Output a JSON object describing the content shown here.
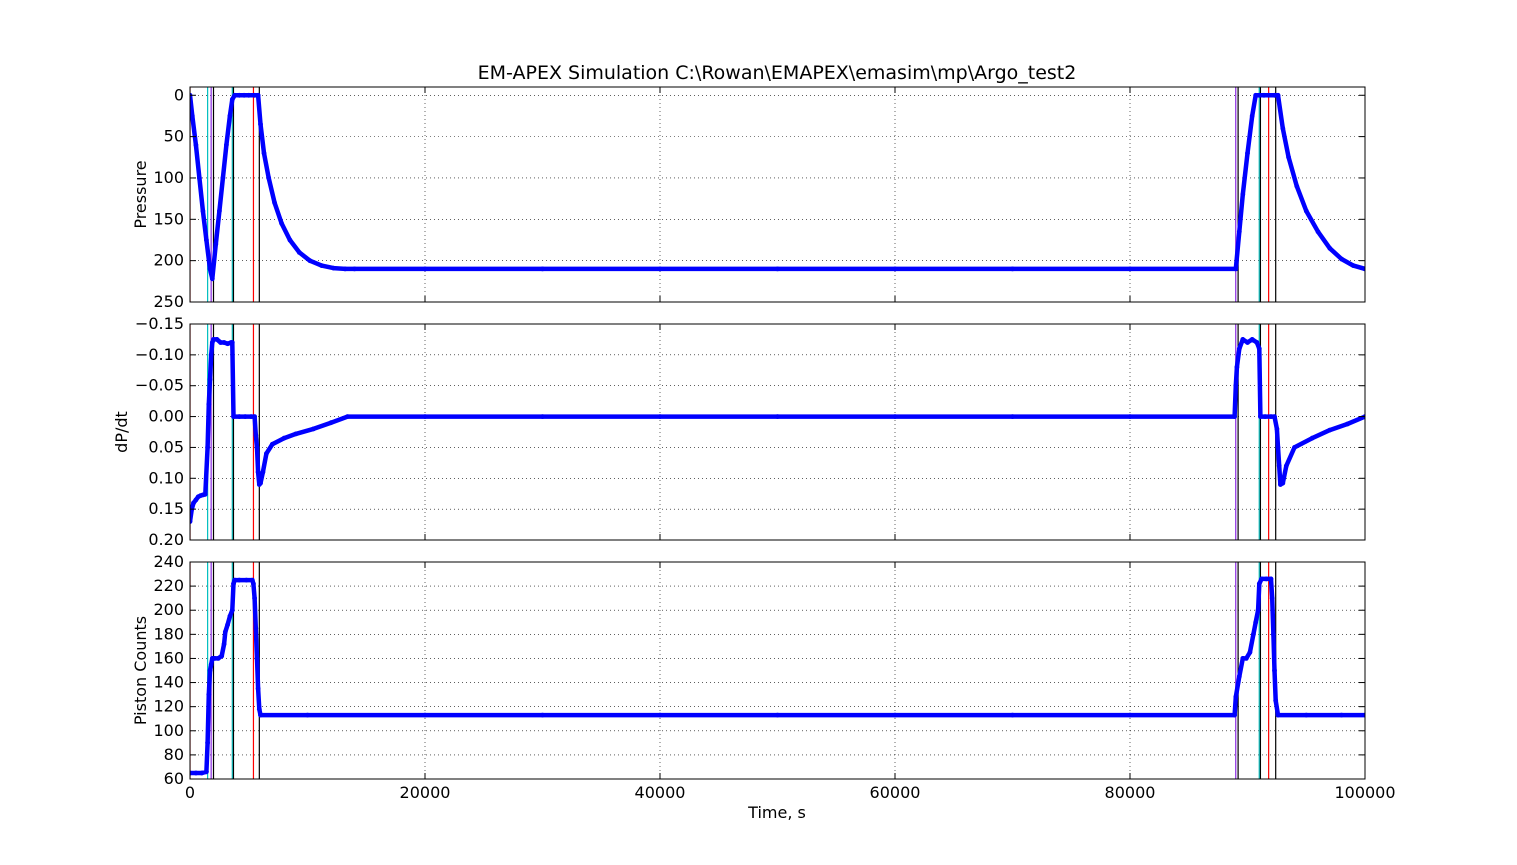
{
  "figure": {
    "title": "EM-APEX Simulation C:\\Rowan\\EMAPEX\\emasim\\mp\\Argo_test2",
    "xlabel": "Time, s"
  },
  "colors": {
    "series": "#0000ff",
    "event_red": "#ff0000",
    "event_cyan": "#00bfbf",
    "event_black": "#000000",
    "event_purple": "#8a2be2",
    "grid": "#000000"
  },
  "chart_data": [
    {
      "type": "scatter",
      "name": "pressure-panel",
      "ylabel": "Pressure",
      "xlim": [
        0,
        100000
      ],
      "ylim": [
        250,
        -10
      ],
      "y_inverted": true,
      "grid": true,
      "xticks": [
        0,
        20000,
        40000,
        60000,
        80000,
        100000
      ],
      "yticks": [
        0,
        50,
        100,
        150,
        200,
        250
      ],
      "ytick_labels": [
        "0",
        "50",
        "100",
        "150",
        "200",
        "250"
      ],
      "series": [
        {
          "x": [
            0,
            200,
            500,
            800,
            1100,
            1400,
            1700,
            1900,
            2200,
            2500,
            2800,
            3100,
            3400,
            3600,
            3800,
            4200,
            4600,
            5000,
            5500,
            5800,
            6000,
            6300,
            6700,
            7200,
            7800,
            8500,
            9300,
            10200,
            11200,
            12200,
            13200,
            14000,
            20000,
            30000,
            40000,
            50000,
            60000,
            70000,
            80000,
            89000,
            89300,
            89600,
            90000,
            90400,
            90700,
            91000,
            91400,
            91800,
            92300,
            92600,
            93000,
            93500,
            94200,
            95000,
            96000,
            97000,
            98000,
            99000,
            100000
          ],
          "y": [
            0,
            25,
            60,
            100,
            140,
            175,
            210,
            222,
            180,
            140,
            100,
            60,
            25,
            5,
            0,
            0,
            0,
            0,
            0,
            0,
            35,
            70,
            100,
            130,
            155,
            175,
            190,
            200,
            206,
            209,
            210,
            210,
            210,
            210,
            210,
            210,
            210,
            210,
            210,
            210,
            165,
            120,
            70,
            25,
            0,
            0,
            0,
            0,
            0,
            0,
            40,
            75,
            110,
            140,
            165,
            185,
            198,
            206,
            210
          ]
        }
      ],
      "events": [
        {
          "x": 0,
          "color": "red"
        },
        {
          "x": 1500,
          "color": "cyan"
        },
        {
          "x": 1800,
          "color": "purple"
        },
        {
          "x": 2000,
          "color": "black"
        },
        {
          "x": 3600,
          "color": "cyan"
        },
        {
          "x": 3700,
          "color": "black"
        },
        {
          "x": 5400,
          "color": "red"
        },
        {
          "x": 5900,
          "color": "black"
        },
        {
          "x": 89000,
          "color": "purple"
        },
        {
          "x": 89200,
          "color": "black"
        },
        {
          "x": 91000,
          "color": "cyan"
        },
        {
          "x": 91100,
          "color": "black"
        },
        {
          "x": 91800,
          "color": "red"
        },
        {
          "x": 92400,
          "color": "black"
        }
      ]
    },
    {
      "type": "scatter",
      "name": "dpdt-panel",
      "ylabel": "dP/dt",
      "xlim": [
        0,
        100000
      ],
      "ylim": [
        0.2,
        -0.15
      ],
      "y_inverted": true,
      "grid": true,
      "xticks": [
        0,
        20000,
        40000,
        60000,
        80000,
        100000
      ],
      "yticks": [
        -0.15,
        -0.1,
        -0.05,
        0,
        0.05,
        0.1,
        0.15,
        0.2
      ],
      "ytick_labels": [
        "−0.15",
        "−0.10",
        "−0.05",
        "0.00",
        "0.05",
        "0.10",
        "0.15",
        "0.20"
      ],
      "series": [
        {
          "x": [
            0,
            150,
            300,
            500,
            700,
            900,
            1100,
            1300,
            1500,
            1600,
            1700,
            1800,
            1900,
            2000,
            2300,
            2600,
            2900,
            3200,
            3500,
            3600,
            3700,
            4200,
            4700,
            5200,
            5500,
            5600,
            5700,
            5800,
            5900,
            6000,
            6200,
            6500,
            7000,
            8000,
            9000,
            10500,
            12000,
            13400,
            20000,
            30000,
            40000,
            50000,
            60000,
            70000,
            80000,
            88900,
            89000,
            89100,
            89300,
            89600,
            90000,
            90400,
            90800,
            91000,
            91100,
            91500,
            92000,
            92300,
            92500,
            92600,
            92700,
            92800,
            93000,
            93300,
            94000,
            95500,
            97000,
            98500,
            100000
          ],
          "y": [
            0.17,
            0.15,
            0.14,
            0.135,
            0.13,
            0.128,
            0.127,
            0.126,
            0.05,
            -0.02,
            -0.06,
            -0.1,
            -0.12,
            -0.125,
            -0.125,
            -0.12,
            -0.12,
            -0.118,
            -0.12,
            -0.12,
            0,
            0,
            0,
            0,
            0,
            0.03,
            0.05,
            0.09,
            0.11,
            0.108,
            0.09,
            0.06,
            0.045,
            0.035,
            0.028,
            0.02,
            0.01,
            0,
            0,
            0,
            0,
            0,
            0,
            0,
            0,
            0,
            -0.05,
            -0.08,
            -0.11,
            -0.125,
            -0.12,
            -0.125,
            -0.12,
            -0.11,
            0,
            0,
            0,
            0,
            0.02,
            0.05,
            0.08,
            0.11,
            0.108,
            0.08,
            0.05,
            0.035,
            0.022,
            0.012,
            0
          ]
        }
      ],
      "events": [
        {
          "x": 0,
          "color": "red"
        },
        {
          "x": 1500,
          "color": "cyan"
        },
        {
          "x": 1800,
          "color": "purple"
        },
        {
          "x": 2000,
          "color": "black"
        },
        {
          "x": 3600,
          "color": "cyan"
        },
        {
          "x": 3700,
          "color": "black"
        },
        {
          "x": 5400,
          "color": "red"
        },
        {
          "x": 5900,
          "color": "black"
        },
        {
          "x": 89000,
          "color": "purple"
        },
        {
          "x": 89200,
          "color": "black"
        },
        {
          "x": 91000,
          "color": "cyan"
        },
        {
          "x": 91100,
          "color": "black"
        },
        {
          "x": 91800,
          "color": "red"
        },
        {
          "x": 92400,
          "color": "black"
        }
      ]
    },
    {
      "type": "scatter",
      "name": "piston-panel",
      "ylabel": "Piston Counts",
      "xlim": [
        0,
        100000
      ],
      "ylim": [
        60,
        240
      ],
      "y_inverted": false,
      "grid": true,
      "xticks": [
        0,
        20000,
        40000,
        60000,
        80000,
        100000
      ],
      "xtick_labels": [
        "0",
        "20000",
        "40000",
        "60000",
        "80000",
        "100000"
      ],
      "yticks": [
        60,
        80,
        100,
        120,
        140,
        160,
        180,
        200,
        220,
        240
      ],
      "ytick_labels": [
        "60",
        "80",
        "100",
        "120",
        "140",
        "160",
        "180",
        "200",
        "220",
        "240"
      ],
      "series": [
        {
          "x": [
            0,
            500,
            1000,
            1400,
            1500,
            1600,
            1700,
            1800,
            1900,
            2100,
            2400,
            2700,
            2900,
            3000,
            3200,
            3400,
            3600,
            3700,
            3800,
            4200,
            4800,
            5300,
            5400,
            5500,
            5600,
            5700,
            5800,
            5900,
            6000,
            10000,
            20000,
            30000,
            40000,
            50000,
            60000,
            70000,
            80000,
            88900,
            89000,
            89300,
            89600,
            89900,
            90200,
            90500,
            90700,
            90900,
            91000,
            91200,
            91600,
            92000,
            92100,
            92200,
            92300,
            92400,
            92600,
            95000,
            98000,
            100000
          ],
          "y": [
            65,
            65,
            65,
            66,
            90,
            130,
            150,
            155,
            160,
            160,
            160,
            162,
            172,
            182,
            188,
            195,
            200,
            222,
            225,
            225,
            225,
            225,
            222,
            210,
            185,
            160,
            135,
            118,
            113,
            113,
            113,
            113,
            113,
            113,
            113,
            113,
            113,
            113,
            128,
            145,
            160,
            160,
            165,
            180,
            190,
            200,
            222,
            226,
            226,
            226,
            210,
            180,
            150,
            125,
            113,
            113,
            113,
            113
          ]
        }
      ],
      "events": [
        {
          "x": 0,
          "color": "red"
        },
        {
          "x": 1500,
          "color": "cyan"
        },
        {
          "x": 1800,
          "color": "purple"
        },
        {
          "x": 2000,
          "color": "black"
        },
        {
          "x": 3600,
          "color": "cyan"
        },
        {
          "x": 3700,
          "color": "black"
        },
        {
          "x": 5400,
          "color": "red"
        },
        {
          "x": 5900,
          "color": "black"
        },
        {
          "x": 89000,
          "color": "purple"
        },
        {
          "x": 89200,
          "color": "black"
        },
        {
          "x": 91000,
          "color": "cyan"
        },
        {
          "x": 91100,
          "color": "black"
        },
        {
          "x": 91800,
          "color": "red"
        },
        {
          "x": 92400,
          "color": "black"
        }
      ]
    }
  ]
}
